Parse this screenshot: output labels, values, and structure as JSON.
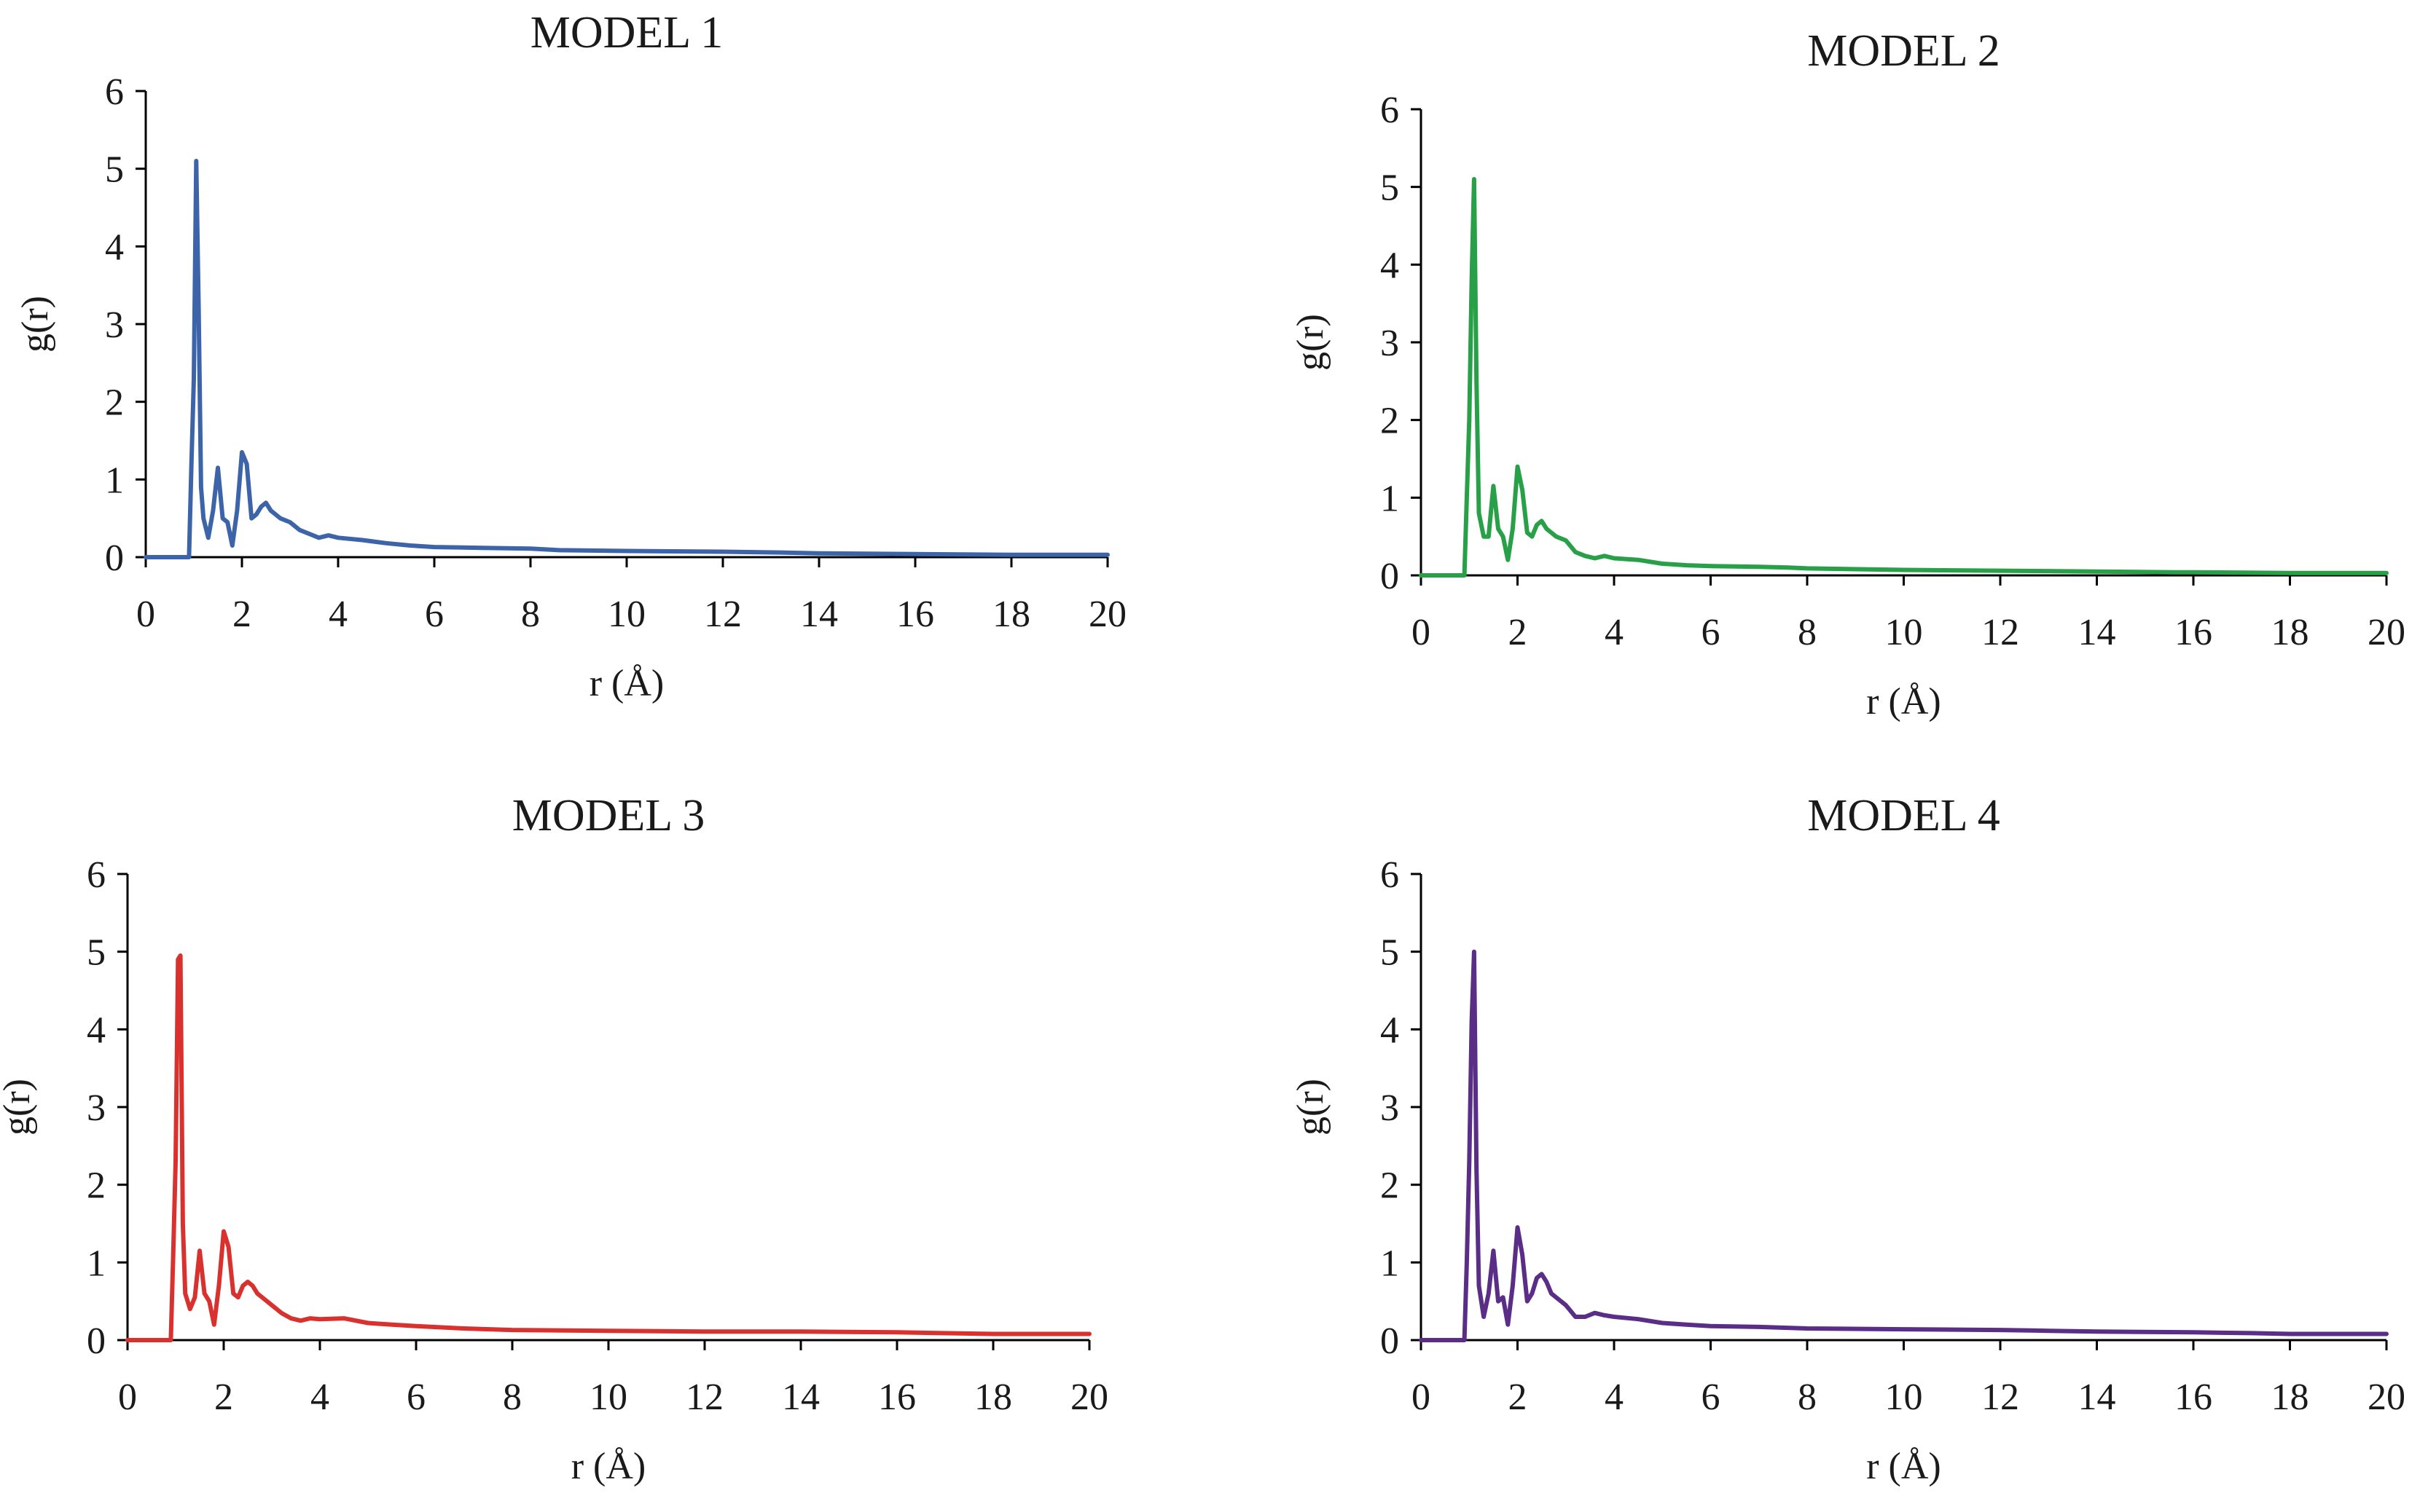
{
  "chart_data": [
    {
      "type": "line",
      "title": "MODEL 1",
      "xlabel": "r (Å)",
      "ylabel": "g(r)",
      "xlim": [
        0,
        20
      ],
      "ylim": [
        0,
        6
      ],
      "xticks": [
        "0",
        "2",
        "4",
        "6",
        "8",
        "10",
        "12",
        "14",
        "16",
        "18",
        "20"
      ],
      "yticks": [
        "0",
        "1",
        "2",
        "3",
        "4",
        "5",
        "6"
      ],
      "grid": false,
      "color": "#3d64a8",
      "x": [
        0,
        0.9,
        0.95,
        1.0,
        1.05,
        1.1,
        1.15,
        1.2,
        1.3,
        1.4,
        1.5,
        1.6,
        1.7,
        1.8,
        1.9,
        2.0,
        2.1,
        2.2,
        2.3,
        2.4,
        2.5,
        2.6,
        2.7,
        2.8,
        3.0,
        3.2,
        3.4,
        3.6,
        3.8,
        4.0,
        4.5,
        5.0,
        5.5,
        6.0,
        7.0,
        8.0,
        8.6,
        10,
        12,
        13.2,
        14,
        16,
        18,
        20
      ],
      "y": [
        0,
        0,
        1.2,
        2.3,
        5.1,
        3.2,
        0.9,
        0.5,
        0.25,
        0.6,
        1.15,
        0.5,
        0.45,
        0.15,
        0.6,
        1.35,
        1.2,
        0.5,
        0.55,
        0.65,
        0.7,
        0.6,
        0.55,
        0.5,
        0.45,
        0.35,
        0.3,
        0.25,
        0.28,
        0.25,
        0.22,
        0.18,
        0.15,
        0.13,
        0.12,
        0.11,
        0.09,
        0.08,
        0.07,
        0.06,
        0.05,
        0.04,
        0.03,
        0.03
      ]
    },
    {
      "type": "line",
      "title": "MODEL 2",
      "xlabel": "r (Å)",
      "ylabel": "g(r)",
      "xlim": [
        0,
        20
      ],
      "ylim": [
        0,
        6
      ],
      "xticks": [
        "0",
        "2",
        "4",
        "6",
        "8",
        "10",
        "12",
        "14",
        "16",
        "18",
        "20"
      ],
      "yticks": [
        "0",
        "1",
        "2",
        "3",
        "4",
        "5",
        "6"
      ],
      "grid": false,
      "color": "#27a047",
      "x": [
        0,
        0.9,
        0.95,
        1.0,
        1.05,
        1.1,
        1.15,
        1.2,
        1.3,
        1.4,
        1.5,
        1.6,
        1.7,
        1.8,
        1.9,
        2.0,
        2.1,
        2.2,
        2.3,
        2.4,
        2.5,
        2.6,
        2.7,
        2.8,
        3.0,
        3.2,
        3.4,
        3.6,
        3.8,
        4.0,
        4.5,
        5.0,
        5.5,
        6.0,
        7.0,
        7.6,
        8.0,
        10,
        12,
        14,
        15.6,
        16,
        18,
        20
      ],
      "y": [
        0,
        0,
        1.0,
        2.0,
        3.8,
        5.1,
        2.5,
        0.8,
        0.5,
        0.5,
        1.15,
        0.6,
        0.5,
        0.2,
        0.6,
        1.4,
        1.1,
        0.55,
        0.5,
        0.65,
        0.7,
        0.6,
        0.55,
        0.5,
        0.45,
        0.3,
        0.25,
        0.22,
        0.25,
        0.22,
        0.2,
        0.15,
        0.13,
        0.12,
        0.11,
        0.1,
        0.09,
        0.07,
        0.06,
        0.05,
        0.04,
        0.04,
        0.03,
        0.03
      ]
    },
    {
      "type": "line",
      "title": "MODEL 3",
      "xlabel": "r (Å)",
      "ylabel": "g(r)",
      "xlim": [
        0,
        20
      ],
      "ylim": [
        0,
        6
      ],
      "xticks": [
        "0",
        "2",
        "4",
        "6",
        "8",
        "10",
        "12",
        "14",
        "16",
        "18",
        "20"
      ],
      "yticks": [
        "0",
        "1",
        "2",
        "3",
        "4",
        "5",
        "6"
      ],
      "grid": false,
      "color": "#d9312e",
      "x": [
        0,
        0.9,
        0.95,
        1.0,
        1.05,
        1.1,
        1.15,
        1.2,
        1.3,
        1.4,
        1.5,
        1.6,
        1.7,
        1.8,
        1.9,
        2.0,
        2.1,
        2.2,
        2.3,
        2.4,
        2.5,
        2.6,
        2.7,
        2.8,
        3.0,
        3.2,
        3.4,
        3.6,
        3.8,
        4.0,
        4.5,
        5.0,
        5.5,
        6.0,
        7.0,
        8.0,
        10,
        12,
        14,
        16,
        18,
        20
      ],
      "y": [
        0,
        0,
        1.1,
        2.3,
        4.9,
        4.95,
        1.5,
        0.6,
        0.4,
        0.55,
        1.15,
        0.6,
        0.5,
        0.2,
        0.7,
        1.4,
        1.2,
        0.6,
        0.55,
        0.7,
        0.75,
        0.7,
        0.6,
        0.55,
        0.45,
        0.35,
        0.28,
        0.25,
        0.28,
        0.27,
        0.28,
        0.22,
        0.2,
        0.18,
        0.15,
        0.13,
        0.12,
        0.11,
        0.11,
        0.1,
        0.08,
        0.08
      ]
    },
    {
      "type": "line",
      "title": "MODEL 4",
      "xlabel": "r (Å)",
      "ylabel": "g(r)",
      "xlim": [
        0,
        20
      ],
      "ylim": [
        0,
        6
      ],
      "xticks": [
        "0",
        "2",
        "4",
        "6",
        "8",
        "10",
        "12",
        "14",
        "16",
        "18",
        "20"
      ],
      "yticks": [
        "0",
        "1",
        "2",
        "3",
        "4",
        "5",
        "6"
      ],
      "grid": false,
      "color": "#5a2d86",
      "x": [
        0,
        0.9,
        0.95,
        1.0,
        1.05,
        1.1,
        1.15,
        1.2,
        1.3,
        1.4,
        1.5,
        1.6,
        1.7,
        1.8,
        1.9,
        2.0,
        2.1,
        2.2,
        2.3,
        2.4,
        2.5,
        2.6,
        2.7,
        2.8,
        3.0,
        3.2,
        3.4,
        3.6,
        3.8,
        4.0,
        4.5,
        5.0,
        5.5,
        6.0,
        7.0,
        8.0,
        10,
        12,
        13,
        14,
        16,
        17.2,
        18,
        20
      ],
      "y": [
        0,
        0,
        1.0,
        2.3,
        4.1,
        5.0,
        2.2,
        0.7,
        0.3,
        0.6,
        1.15,
        0.5,
        0.55,
        0.2,
        0.7,
        1.45,
        1.1,
        0.5,
        0.6,
        0.8,
        0.85,
        0.75,
        0.6,
        0.55,
        0.45,
        0.3,
        0.3,
        0.35,
        0.32,
        0.3,
        0.27,
        0.22,
        0.2,
        0.18,
        0.17,
        0.15,
        0.14,
        0.13,
        0.12,
        0.11,
        0.1,
        0.09,
        0.08,
        0.08
      ]
    }
  ]
}
